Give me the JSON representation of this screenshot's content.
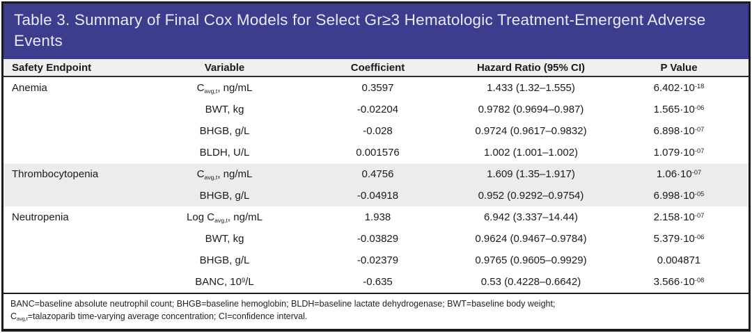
{
  "title": "Table 3. Summary of Final Cox Models for Select Gr≥3 Hematologic Treatment-Emergent Adverse Events",
  "colors": {
    "title_band_bg": "#3d3d8e",
    "title_text": "#e9e9f4",
    "header_row_bg": "#f0f0ee",
    "shaded_section_bg": "#ececec",
    "border": "#1b1b1b"
  },
  "table": {
    "columns": [
      "Safety Endpoint",
      "Variable",
      "Coefficient",
      "Hazard Ratio (95% CI)",
      "P Value"
    ],
    "sections": [
      {
        "endpoint": "Anemia",
        "shaded": false,
        "rows": [
          {
            "variable": [
              {
                "t": "C"
              },
              {
                "sub": "avg,t"
              },
              {
                "t": ", ng/mL"
              }
            ],
            "coefficient": "0.3597",
            "hazard_ratio": "1.433 (1.32–1.555)",
            "p_value": [
              {
                "t": "6.402·10"
              },
              {
                "sup": "-18"
              }
            ]
          },
          {
            "variable": [
              {
                "t": "BWT, kg"
              }
            ],
            "coefficient": "-0.02204",
            "hazard_ratio": "0.9782 (0.9694–0.987)",
            "p_value": [
              {
                "t": "1.565·10"
              },
              {
                "sup": "-06"
              }
            ]
          },
          {
            "variable": [
              {
                "t": "BHGB, g/L"
              }
            ],
            "coefficient": "-0.028",
            "hazard_ratio": "0.9724 (0.9617–0.9832)",
            "p_value": [
              {
                "t": "6.898·10"
              },
              {
                "sup": "-07"
              }
            ]
          },
          {
            "variable": [
              {
                "t": "BLDH, U/L"
              }
            ],
            "coefficient": "0.001576",
            "hazard_ratio": "1.002 (1.001–1.002)",
            "p_value": [
              {
                "t": "1.079·10"
              },
              {
                "sup": "-07"
              }
            ]
          }
        ]
      },
      {
        "endpoint": "Thrombocytopenia",
        "shaded": true,
        "rows": [
          {
            "variable": [
              {
                "t": "C"
              },
              {
                "sub": "avg,t"
              },
              {
                "t": ", ng/mL"
              }
            ],
            "coefficient": "0.4756",
            "hazard_ratio": "1.609 (1.35–1.917)",
            "p_value": [
              {
                "t": "1.06·10"
              },
              {
                "sup": "-07"
              }
            ]
          },
          {
            "variable": [
              {
                "t": "BHGB, g/L"
              }
            ],
            "coefficient": "-0.04918",
            "hazard_ratio": "0.952 (0.9292–0.9754)",
            "p_value": [
              {
                "t": "6.998·10"
              },
              {
                "sup": "-05"
              }
            ]
          }
        ]
      },
      {
        "endpoint": "Neutropenia",
        "shaded": false,
        "rows": [
          {
            "variable": [
              {
                "t": "Log C"
              },
              {
                "sub": "avg,t"
              },
              {
                "t": ", ng/mL"
              }
            ],
            "coefficient": "1.938",
            "hazard_ratio": "6.942 (3.337–14.44)",
            "p_value": [
              {
                "t": "2.158·10"
              },
              {
                "sup": "-07"
              }
            ]
          },
          {
            "variable": [
              {
                "t": "BWT, kg"
              }
            ],
            "coefficient": "-0.03829",
            "hazard_ratio": "0.9624 (0.9467–0.9784)",
            "p_value": [
              {
                "t": "5.379·10"
              },
              {
                "sup": "-06"
              }
            ]
          },
          {
            "variable": [
              {
                "t": "BHGB, g/L"
              }
            ],
            "coefficient": "-0.02379",
            "hazard_ratio": "0.9765 (0.9605–0.9929)",
            "p_value": [
              {
                "t": "0.004871"
              }
            ]
          },
          {
            "variable": [
              {
                "t": "BANC, 10"
              },
              {
                "sup": "9"
              },
              {
                "t": "/L"
              }
            ],
            "coefficient": "-0.635",
            "hazard_ratio": "0.53 (0.4228–0.6642)",
            "p_value": [
              {
                "t": "3.566·10"
              },
              {
                "sup": "-08"
              }
            ]
          }
        ]
      }
    ]
  },
  "footnote": {
    "lines": [
      [
        {
          "t": "BANC=baseline absolute neutrophil count; BHGB=baseline hemoglobin; BLDH=baseline lactate dehydrogenase; BWT=baseline body weight;"
        }
      ],
      [
        {
          "t": "C"
        },
        {
          "sub": "avg,t"
        },
        {
          "t": "=talazoparib time-varying average concentration; CI=confidence interval."
        }
      ]
    ]
  }
}
